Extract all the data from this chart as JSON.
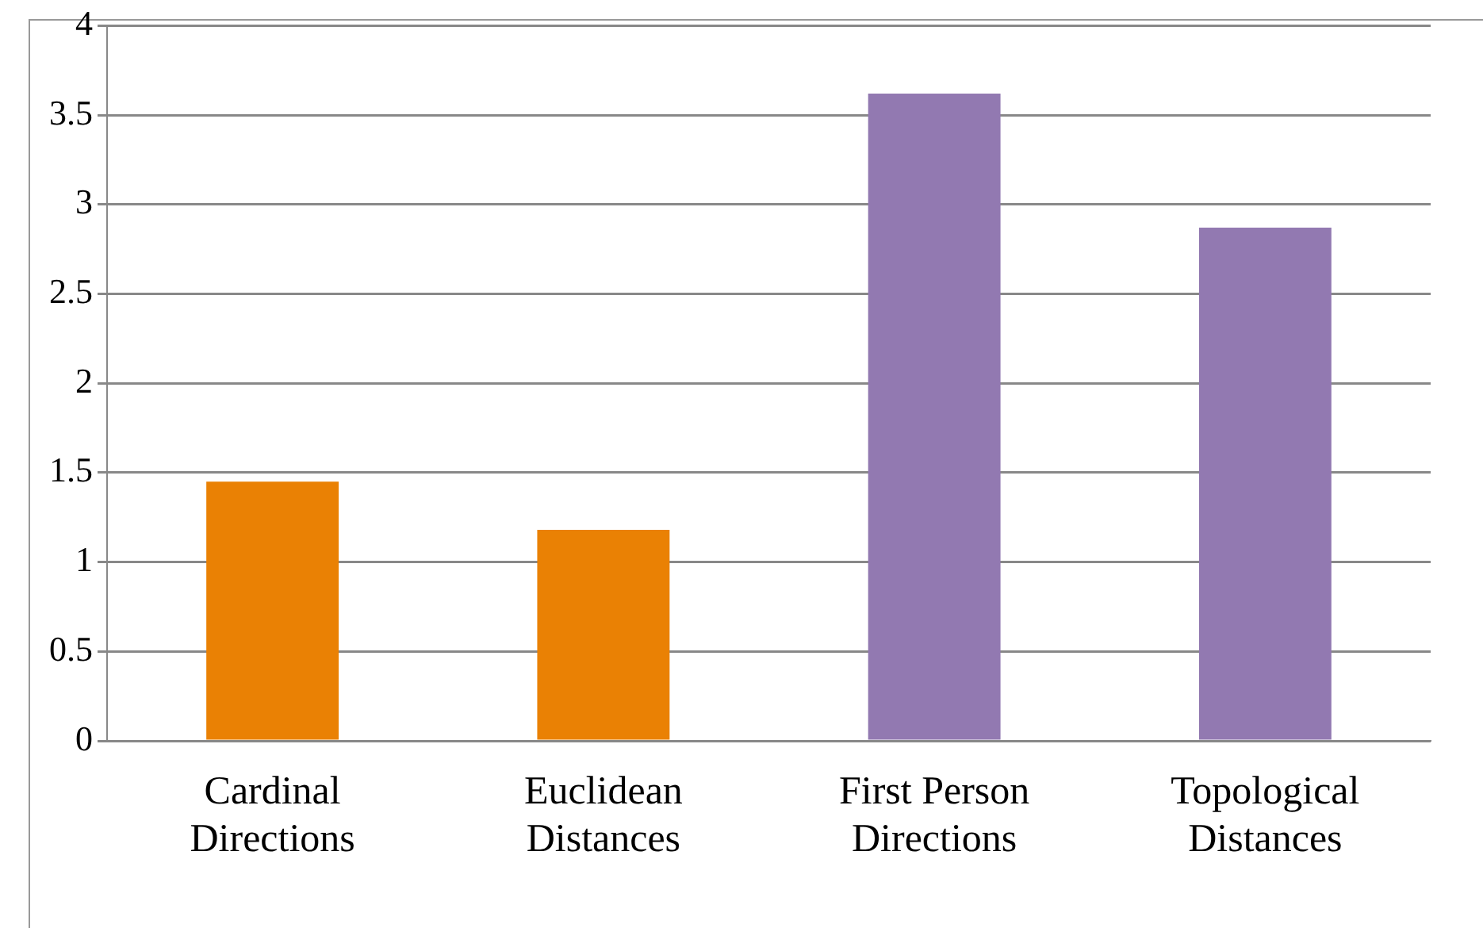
{
  "chart_data": {
    "type": "bar",
    "categories": [
      "Cardinal Directions",
      "Euclidean Distances",
      "First Person Directions",
      "Topological Distances"
    ],
    "values": [
      1.45,
      1.18,
      3.62,
      2.87
    ],
    "colors": [
      "#ea8104",
      "#ea8104",
      "#9279b1",
      "#9279b1"
    ],
    "ylim": [
      0,
      4
    ],
    "yticks": [
      0,
      0.5,
      1,
      1.5,
      2,
      2.5,
      3,
      3.5,
      4
    ],
    "grid": "y",
    "legend": false
  }
}
